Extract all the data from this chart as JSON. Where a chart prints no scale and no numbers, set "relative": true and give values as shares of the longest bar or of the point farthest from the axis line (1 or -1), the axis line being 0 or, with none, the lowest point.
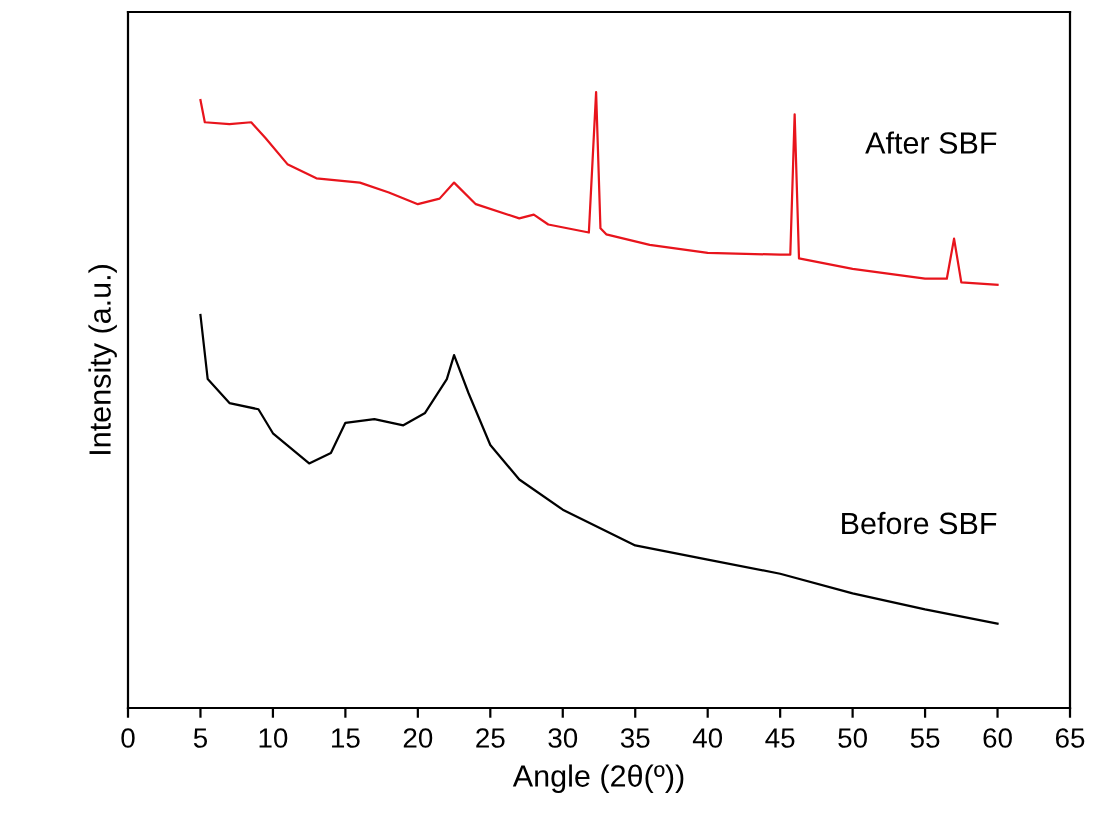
{
  "chart_data": {
    "type": "line",
    "relative": true,
    "xlabel": "Angle (2θ(º))",
    "ylabel": "Intensity (a.u.)",
    "xlim": [
      0,
      65
    ],
    "xticks": [
      0,
      5,
      10,
      15,
      20,
      25,
      30,
      35,
      40,
      45,
      50,
      55,
      60,
      65
    ],
    "tick_labels": "x",
    "grid": false,
    "legend": false,
    "marker": "none",
    "line_style": "solid",
    "series": [
      {
        "name": "After SBF",
        "color": "#e8141c",
        "x": [
          5,
          5.3,
          7,
          8.5,
          9.5,
          11,
          13,
          16,
          18,
          20,
          21.5,
          22.5,
          24,
          27,
          28,
          29,
          31.8,
          32.3,
          32.6,
          33,
          36,
          40,
          45,
          45.7,
          46,
          46.3,
          50,
          55,
          56.5,
          57,
          57.5,
          60
        ],
        "values": [
          0.987,
          0.951,
          0.948,
          0.951,
          0.925,
          0.883,
          0.86,
          0.853,
          0.837,
          0.818,
          0.827,
          0.853,
          0.818,
          0.795,
          0.801,
          0.785,
          0.772,
          1.0,
          0.779,
          0.769,
          0.752,
          0.739,
          0.736,
          0.736,
          0.964,
          0.73,
          0.713,
          0.697,
          0.697,
          0.762,
          0.691,
          0.687
        ]
      },
      {
        "name": "Before SBF",
        "color": "#000000",
        "x": [
          5,
          5.5,
          7,
          9,
          10,
          12.5,
          14,
          15,
          17,
          19,
          20.5,
          22,
          22.5,
          23.5,
          25,
          27,
          30,
          35,
          40,
          45,
          50,
          55,
          60
        ],
        "values": [
          0.638,
          0.534,
          0.495,
          0.485,
          0.446,
          0.397,
          0.414,
          0.463,
          0.469,
          0.459,
          0.479,
          0.534,
          0.573,
          0.511,
          0.427,
          0.371,
          0.322,
          0.264,
          0.241,
          0.218,
          0.186,
          0.16,
          0.137
        ]
      }
    ]
  }
}
